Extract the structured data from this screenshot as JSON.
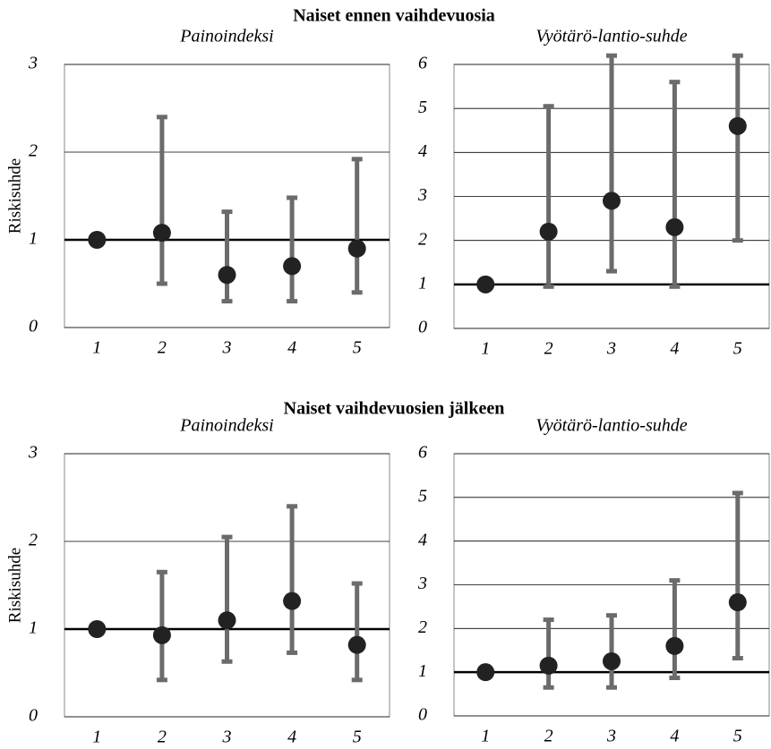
{
  "headings": [
    "Naiset ennen vaihdevuosia",
    "Naiset vaihdevuosien jälkeen"
  ],
  "chart_data": [
    {
      "type": "errorbar",
      "title": "Painoindeksi",
      "ylabel": "Riskisuhde",
      "categories": [
        "1",
        "2",
        "3",
        "4",
        "5"
      ],
      "values": [
        1.0,
        1.08,
        0.6,
        0.7,
        0.9
      ],
      "lower": [
        null,
        0.5,
        0.3,
        0.3,
        0.4
      ],
      "upper": [
        null,
        2.4,
        1.32,
        1.48,
        1.92
      ],
      "ylim": [
        0,
        3
      ],
      "yticks": [
        0,
        1,
        2,
        3
      ],
      "reference_line": 1,
      "grid": true,
      "color": "#6b6b6b",
      "marker_color": "#222222"
    },
    {
      "type": "errorbar",
      "title": "Vyötärö-lantio-suhde",
      "categories": [
        "1",
        "2",
        "3",
        "4",
        "5"
      ],
      "values": [
        1.0,
        2.2,
        2.9,
        2.3,
        4.6
      ],
      "lower": [
        null,
        0.95,
        1.3,
        0.95,
        2.0
      ],
      "upper": [
        null,
        5.05,
        6.2,
        5.6,
        6.2
      ],
      "ylim": [
        0,
        6
      ],
      "yticks": [
        0,
        1,
        2,
        3,
        4,
        5,
        6
      ],
      "reference_line": 1,
      "grid": true,
      "color": "#6b6b6b",
      "marker_color": "#222222"
    },
    {
      "type": "errorbar",
      "title": "Painoindeksi",
      "ylabel": "Riskisuhde",
      "categories": [
        "1",
        "2",
        "3",
        "4",
        "5"
      ],
      "values": [
        1.0,
        0.93,
        1.1,
        1.32,
        0.82
      ],
      "lower": [
        null,
        0.42,
        0.63,
        0.73,
        0.42
      ],
      "upper": [
        null,
        1.65,
        2.05,
        2.4,
        1.52
      ],
      "ylim": [
        0,
        3
      ],
      "yticks": [
        0,
        1,
        2,
        3
      ],
      "reference_line": 1,
      "grid": true,
      "color": "#6b6b6b",
      "marker_color": "#222222"
    },
    {
      "type": "errorbar",
      "title": "Vyötärö-lantio-suhde",
      "categories": [
        "1",
        "2",
        "3",
        "4",
        "5"
      ],
      "values": [
        1.0,
        1.15,
        1.25,
        1.6,
        2.6
      ],
      "lower": [
        null,
        0.65,
        0.65,
        0.87,
        1.32
      ],
      "upper": [
        null,
        2.2,
        2.3,
        3.1,
        5.1
      ],
      "ylim": [
        0,
        6
      ],
      "yticks": [
        0,
        1,
        2,
        3,
        4,
        5,
        6
      ],
      "reference_line": 1,
      "grid": true,
      "color": "#6b6b6b",
      "marker_color": "#222222"
    }
  ]
}
